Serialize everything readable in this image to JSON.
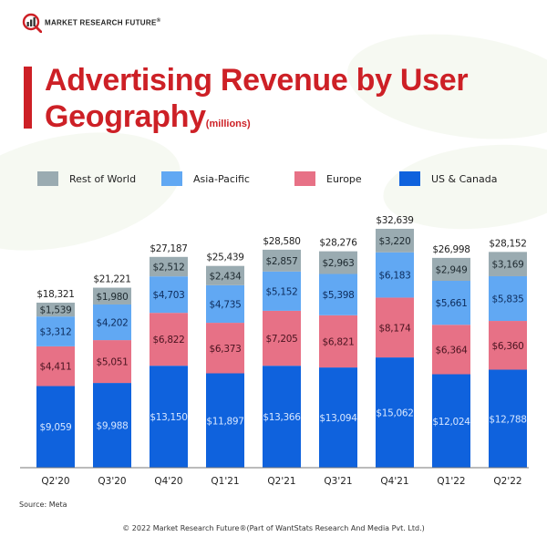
{
  "brand": {
    "name": "MARKET RESEARCH FUTURE",
    "reg": "®",
    "accent": "#cd2026"
  },
  "header": {
    "title_line1": "Advertising Revenue by User",
    "title_line2": "Geography",
    "title_unit": "(millions)"
  },
  "chart_data": {
    "type": "bar",
    "stacked": true,
    "title": "Advertising Revenue by User Geography (millions)",
    "xlabel": "",
    "ylabel": "",
    "grid": false,
    "legend_position": "top",
    "categories": [
      "Q2'20",
      "Q3'20",
      "Q4'20",
      "Q1'21",
      "Q2'21",
      "Q3'21",
      "Q4'21",
      "Q1'22",
      "Q2'22"
    ],
    "series": [
      {
        "name": "US & Canada",
        "color": "#0f62dd",
        "label_color": "#d6e6ff",
        "values": [
          9059,
          9988,
          13150,
          11897,
          13366,
          13094,
          15062,
          12024,
          12788
        ]
      },
      {
        "name": "Europe",
        "color": "#e77186",
        "label_color": "#4a1420",
        "values": [
          4411,
          5051,
          6822,
          6373,
          7205,
          6821,
          8174,
          6364,
          6360
        ]
      },
      {
        "name": "Asia-Pacific",
        "color": "#61a8f3",
        "label_color": "#0d2c5c",
        "values": [
          3312,
          4202,
          4703,
          4735,
          5152,
          5398,
          6183,
          5661,
          5835
        ]
      },
      {
        "name": "Rest of World",
        "color": "#9aabb1",
        "label_color": "#1e2a30",
        "values": [
          1539,
          1980,
          2512,
          2434,
          2857,
          2963,
          3220,
          2949,
          3169
        ]
      }
    ],
    "totals": [
      18321,
      21221,
      27187,
      25439,
      28580,
      28276,
      32639,
      26998,
      28152
    ],
    "value_prefix": "$"
  },
  "legend": [
    {
      "label": "Rest of World",
      "color": "#9aabb1"
    },
    {
      "label": "Asia-Pacific",
      "color": "#61a8f3"
    },
    {
      "label": "Europe",
      "color": "#e77186"
    },
    {
      "label": "US & Canada",
      "color": "#0f62dd"
    }
  ],
  "source": "Source: Meta",
  "footer": "© 2022 Market Research Future®(Part of WantStats Research And Media Pvt. Ltd.)"
}
